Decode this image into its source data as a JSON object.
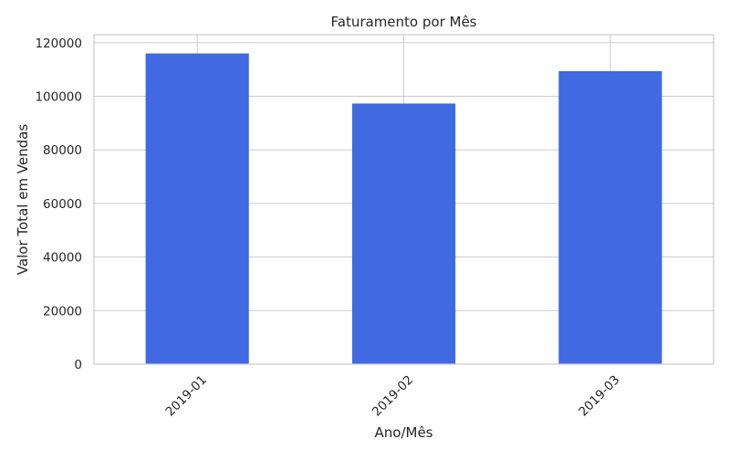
{
  "chart_data": {
    "type": "bar",
    "title": "Faturamento por Mês",
    "xlabel": "Ano/Mês",
    "ylabel": "Valor Total em Vendas",
    "categories": [
      "2019-01",
      "2019-02",
      "2019-03"
    ],
    "values": [
      116000,
      97300,
      109400
    ],
    "ylim": [
      0,
      123000
    ],
    "yticks": [
      0,
      20000,
      40000,
      60000,
      80000,
      100000,
      120000
    ],
    "ytick_labels": [
      "0",
      "20000",
      "40000",
      "60000",
      "80000",
      "100000",
      "120000"
    ],
    "grid": true,
    "bar_color": "#4169E1",
    "grid_color": "#cccccc",
    "text_color": "#262626"
  }
}
